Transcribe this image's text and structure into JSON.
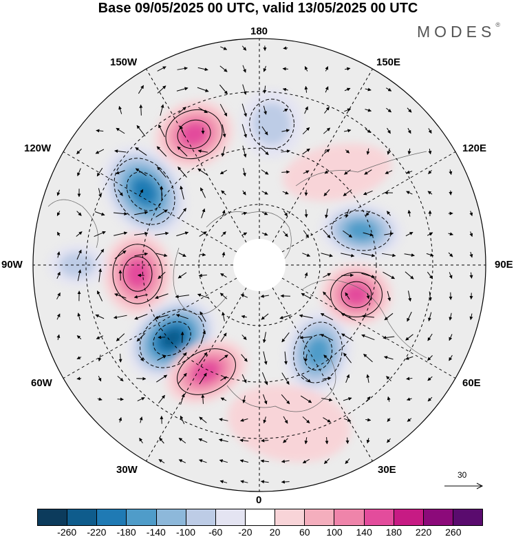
{
  "title": "Base 09/05/2025 00 UTC, valid 13/05/2025 00 UTC",
  "logo": {
    "text": "MODES",
    "mark": "®"
  },
  "map": {
    "projection": "north-polar-stereographic",
    "center_longitude_at_bottom": "0",
    "lon_labels": {
      "top": "180",
      "bottom": "0",
      "left": "90W",
      "right": "90E",
      "upper_left_1": "150W",
      "upper_left_2": "120W",
      "upper_right_1": "150E",
      "upper_right_2": "120E",
      "lower_left_1": "60W",
      "lower_left_2": "30W",
      "lower_right_1": "60E",
      "lower_right_2": "30E"
    },
    "graticule": "dashed",
    "vectors": "wind-arrows",
    "field": "shaded anomaly"
  },
  "reference_vector": {
    "label": "30",
    "icon": "arrow-right-icon"
  },
  "colorbar": {
    "colors": [
      "#0c3b5c",
      "#0f5c8c",
      "#1f7ab4",
      "#4f9cc9",
      "#8db8da",
      "#bdcce6",
      "#e4e4f2",
      "#ffffff",
      "#f8d4d8",
      "#f4aebd",
      "#ef84aa",
      "#e34c9c",
      "#c71b84",
      "#8c0a7a",
      "#5a0b6e"
    ],
    "ticks": [
      "-260",
      "-220",
      "-180",
      "-140",
      "-100",
      "-60",
      "-20",
      "20",
      "60",
      "100",
      "140",
      "180",
      "220",
      "260"
    ]
  },
  "anomalies": [
    {
      "sign": "positive",
      "strength": 180,
      "label": "pos-north-pacific"
    },
    {
      "sign": "negative",
      "strength": 220,
      "label": "neg-alaska-gulf"
    },
    {
      "sign": "positive",
      "strength": 200,
      "label": "pos-canada"
    },
    {
      "sign": "negative",
      "strength": 260,
      "label": "neg-north-atlantic"
    },
    {
      "sign": "positive",
      "strength": 160,
      "label": "pos-east-atlantic"
    },
    {
      "sign": "negative",
      "strength": 200,
      "label": "neg-scandinavia"
    },
    {
      "sign": "positive",
      "strength": 200,
      "label": "pos-siberia"
    },
    {
      "sign": "negative",
      "strength": 160,
      "label": "neg-east-siberia"
    },
    {
      "sign": "negative",
      "strength": 100,
      "label": "neg-bering"
    },
    {
      "sign": "negative",
      "strength": 80,
      "label": "neg-west"
    },
    {
      "sign": "positive",
      "strength": 60,
      "label": "pos-europe"
    },
    {
      "sign": "positive",
      "strength": 60,
      "label": "pos-east-asia"
    }
  ]
}
